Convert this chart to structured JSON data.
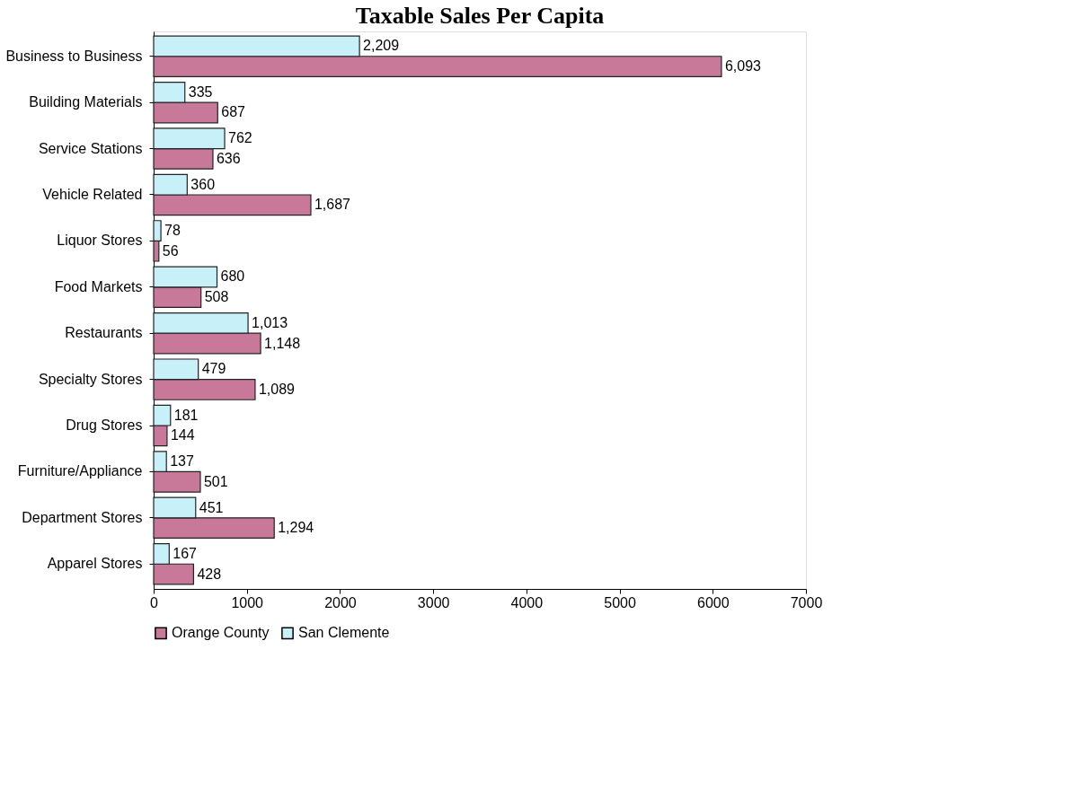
{
  "chart_data": {
    "type": "bar",
    "orientation": "horizontal",
    "title": "Taxable Sales Per Capita",
    "categories": [
      "Business to Business",
      "Building Materials",
      "Service Stations",
      "Vehicle Related",
      "Liquor Stores",
      "Food Markets",
      "Restaurants",
      "Specialty Stores",
      "Drug Stores",
      "Furniture/Appliance",
      "Department Stores",
      "Apparel Stores"
    ],
    "series": [
      {
        "name": "Orange County",
        "color": "#c87898",
        "values": [
          6093,
          687,
          636,
          1687,
          56,
          508,
          1148,
          1089,
          144,
          501,
          1294,
          428
        ],
        "value_labels": [
          "6,093",
          "687",
          "636",
          "1,687",
          "56",
          "508",
          "1,148",
          "1,089",
          "144",
          "501",
          "1,294",
          "428"
        ]
      },
      {
        "name": "San Clemente",
        "color": "#c8f0f8",
        "values": [
          2209,
          335,
          762,
          360,
          78,
          680,
          1013,
          479,
          181,
          137,
          451,
          167
        ],
        "value_labels": [
          "2,209",
          "335",
          "762",
          "360",
          "78",
          "680",
          "1,013",
          "479",
          "181",
          "137",
          "451",
          "167"
        ]
      }
    ],
    "xlim": [
      0,
      7000
    ],
    "xticks": [
      0,
      1000,
      2000,
      3000,
      4000,
      5000,
      6000,
      7000
    ],
    "legend": "bottom",
    "grid": false
  }
}
